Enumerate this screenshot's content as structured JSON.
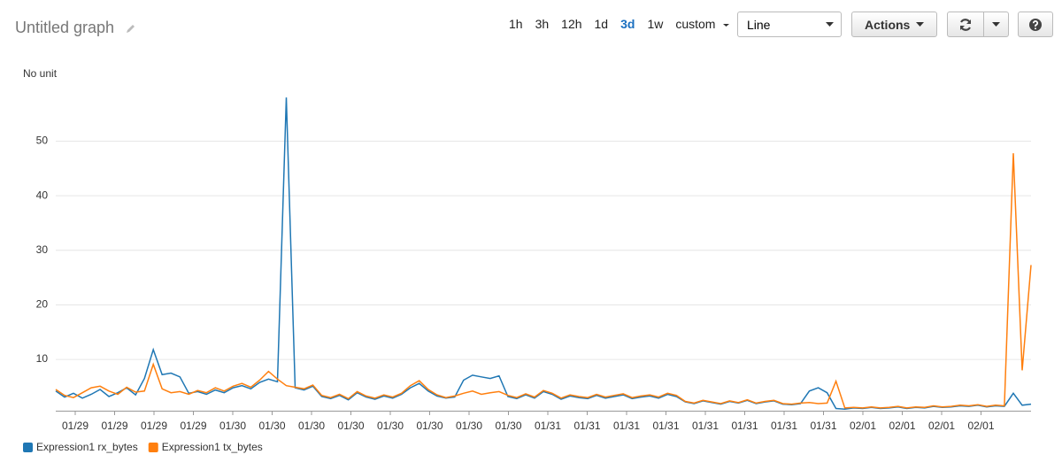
{
  "toolbar": {
    "title": "Untitled graph",
    "ranges": [
      "1h",
      "3h",
      "12h",
      "1d",
      "3d",
      "1w",
      "custom"
    ],
    "active_range_index": 4,
    "chart_style": "Line",
    "actions": "Actions"
  },
  "chart_data": {
    "type": "line",
    "unit_label": "No unit",
    "x_labels": [
      "01/29",
      "01/29",
      "01/29",
      "01/29",
      "01/30",
      "01/30",
      "01/30",
      "01/30",
      "01/30",
      "01/30",
      "01/30",
      "01/30",
      "01/31",
      "01/31",
      "01/31",
      "01/31",
      "01/31",
      "01/31",
      "01/31",
      "01/31",
      "02/01",
      "02/01",
      "02/01",
      "02/01"
    ],
    "ylim": [
      0.6,
      59.5
    ],
    "yticks": [
      10,
      20,
      30,
      40,
      50
    ],
    "grid": true,
    "legend": "bottom-left",
    "series": [
      {
        "name": "Expression1 rx_bytes",
        "color": "#1f77b4",
        "values": [
          4.2,
          3.1,
          3.8,
          2.9,
          3.6,
          4.5,
          3.2,
          3.9,
          4.8,
          3.5,
          6.5,
          11.8,
          7.2,
          7.5,
          6.8,
          3.8,
          4.1,
          3.6,
          4.4,
          3.9,
          4.8,
          5.2,
          4.6,
          5.8,
          6.4,
          5.9,
          58,
          4.8,
          4.4,
          5.1,
          3.2,
          2.8,
          3.4,
          2.6,
          3.9,
          3.1,
          2.7,
          3.3,
          2.9,
          3.6,
          4.8,
          5.6,
          4.2,
          3.3,
          2.9,
          3.1,
          6.2,
          7.1,
          6.8,
          6.5,
          7.0,
          3.2,
          2.8,
          3.5,
          2.9,
          4.1,
          3.6,
          2.7,
          3.3,
          3.0,
          2.8,
          3.4,
          2.9,
          3.2,
          3.5,
          2.8,
          3.1,
          3.3,
          2.9,
          3.6,
          3.2,
          2.2,
          1.9,
          2.4,
          2.1,
          1.8,
          2.3,
          2.0,
          2.5,
          1.9,
          2.2,
          2.4,
          1.8,
          1.7,
          1.9,
          4.2,
          4.8,
          3.9,
          1.0,
          0.9,
          1.1,
          1.0,
          1.2,
          1.0,
          1.1,
          1.3,
          1.0,
          1.2,
          1.1,
          1.4,
          1.2,
          1.3,
          1.5,
          1.4,
          1.6,
          1.3,
          1.5,
          1.4,
          3.8,
          1.6,
          1.8
        ]
      },
      {
        "name": "Expression1 tx_bytes",
        "color": "#ff7f0e",
        "values": [
          4.5,
          3.4,
          3.0,
          3.9,
          4.8,
          5.1,
          4.2,
          3.6,
          4.9,
          4.0,
          4.2,
          9.1,
          4.6,
          3.9,
          4.1,
          3.6,
          4.3,
          3.9,
          4.8,
          4.2,
          5.1,
          5.6,
          4.9,
          6.2,
          7.8,
          6.4,
          5.2,
          4.9,
          4.6,
          5.3,
          3.4,
          3.0,
          3.6,
          2.8,
          4.1,
          3.3,
          2.9,
          3.5,
          3.1,
          3.8,
          5.2,
          6.1,
          4.5,
          3.5,
          3.0,
          3.3,
          3.8,
          4.2,
          3.6,
          3.9,
          4.1,
          3.4,
          3.0,
          3.7,
          3.1,
          4.3,
          3.8,
          2.9,
          3.5,
          3.2,
          3.0,
          3.6,
          3.1,
          3.4,
          3.7,
          3.0,
          3.3,
          3.5,
          3.1,
          3.8,
          3.4,
          2.3,
          2.0,
          2.5,
          2.2,
          1.9,
          2.4,
          2.1,
          2.6,
          2.0,
          2.3,
          2.5,
          1.9,
          1.8,
          2.0,
          2.1,
          1.9,
          2.0,
          6.0,
          1.1,
          1.2,
          1.1,
          1.3,
          1.1,
          1.2,
          1.4,
          1.1,
          1.3,
          1.2,
          1.5,
          1.3,
          1.4,
          1.6,
          1.5,
          1.7,
          1.4,
          1.6,
          1.5,
          47.8,
          8.0,
          27.3
        ]
      }
    ]
  }
}
